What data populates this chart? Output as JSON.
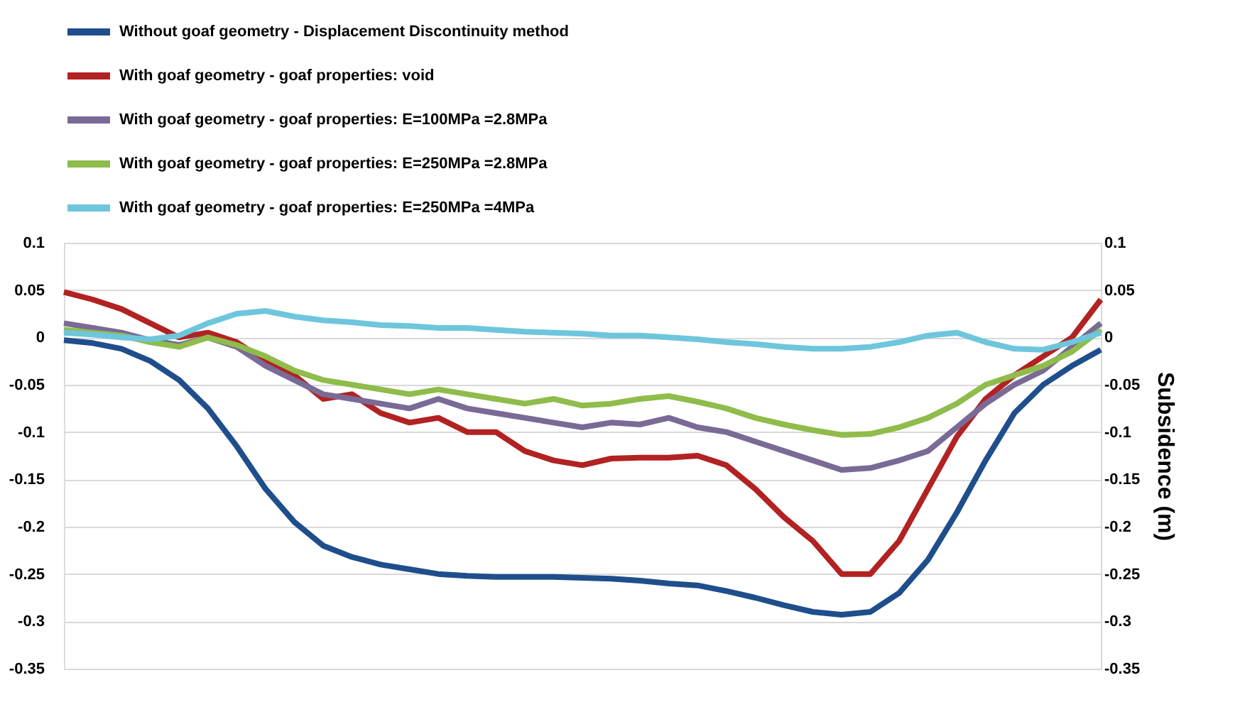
{
  "chart_data": {
    "type": "line",
    "categories": [
      null,
      null,
      null,
      null,
      null,
      null,
      null,
      null,
      null,
      null,
      null,
      null,
      null,
      null,
      null,
      null,
      null,
      null,
      null,
      null,
      null,
      null,
      null,
      null,
      null,
      null,
      null,
      null,
      null,
      null,
      null,
      null,
      null,
      null,
      null,
      null,
      null
    ],
    "series": [
      {
        "name": "Without goaf geometry - Displacement Discontinuity method",
        "color": "#1f4e8c",
        "values": [
          -0.003,
          -0.006,
          -0.012,
          -0.025,
          -0.045,
          -0.075,
          -0.115,
          -0.16,
          -0.195,
          -0.22,
          -0.232,
          -0.24,
          -0.245,
          -0.25,
          -0.252,
          -0.253,
          -0.253,
          -0.253,
          -0.254,
          -0.255,
          -0.257,
          -0.26,
          -0.262,
          -0.268,
          -0.275,
          -0.283,
          -0.29,
          -0.293,
          -0.29,
          -0.27,
          -0.235,
          -0.185,
          -0.13,
          -0.08,
          -0.05,
          -0.03,
          -0.013
        ]
      },
      {
        "name": "With goaf geometry - goaf properties: void",
        "color": "#b22222",
        "values": [
          0.048,
          0.04,
          0.03,
          0.015,
          0.0,
          0.005,
          -0.005,
          -0.025,
          -0.04,
          -0.065,
          -0.06,
          -0.08,
          -0.09,
          -0.085,
          -0.1,
          -0.1,
          -0.12,
          -0.13,
          -0.135,
          -0.128,
          -0.127,
          -0.127,
          -0.125,
          -0.135,
          -0.16,
          -0.19,
          -0.215,
          -0.25,
          -0.25,
          -0.215,
          -0.16,
          -0.105,
          -0.065,
          -0.04,
          -0.02,
          0.0,
          0.04
        ]
      },
      {
        "name": "With goaf geometry - goaf properties: E=100MPa =2.8MPa",
        "color": "#7a6a96",
        "values": [
          0.015,
          0.01,
          0.005,
          -0.003,
          -0.008,
          0.0,
          -0.01,
          -0.03,
          -0.045,
          -0.06,
          -0.065,
          -0.07,
          -0.075,
          -0.065,
          -0.075,
          -0.08,
          -0.085,
          -0.09,
          -0.095,
          -0.09,
          -0.092,
          -0.085,
          -0.095,
          -0.1,
          -0.11,
          -0.12,
          -0.13,
          -0.14,
          -0.138,
          -0.13,
          -0.12,
          -0.095,
          -0.07,
          -0.05,
          -0.035,
          -0.01,
          0.015
        ]
      },
      {
        "name": "With goaf geometry - goaf properties: E=250MPa =2.8MPa",
        "color": "#8fbc4b",
        "values": [
          0.008,
          0.005,
          0.002,
          -0.005,
          -0.01,
          0.0,
          -0.008,
          -0.02,
          -0.035,
          -0.045,
          -0.05,
          -0.055,
          -0.06,
          -0.055,
          -0.06,
          -0.065,
          -0.07,
          -0.065,
          -0.072,
          -0.07,
          -0.065,
          -0.062,
          -0.068,
          -0.075,
          -0.085,
          -0.092,
          -0.098,
          -0.103,
          -0.102,
          -0.095,
          -0.085,
          -0.07,
          -0.05,
          -0.04,
          -0.03,
          -0.015,
          0.008
        ]
      },
      {
        "name": "With goaf geometry - goaf properties: E=250MPa =4MPa",
        "color": "#6ec6dc",
        "values": [
          0.005,
          0.003,
          0.0,
          -0.002,
          0.002,
          0.015,
          0.025,
          0.028,
          0.022,
          0.018,
          0.016,
          0.013,
          0.012,
          0.01,
          0.01,
          0.008,
          0.006,
          0.005,
          0.004,
          0.002,
          0.002,
          0.0,
          -0.002,
          -0.005,
          -0.007,
          -0.01,
          -0.012,
          -0.012,
          -0.01,
          -0.005,
          0.002,
          0.005,
          -0.005,
          -0.012,
          -0.013,
          -0.005,
          0.005
        ]
      }
    ],
    "ylim": [
      -0.35,
      0.1
    ],
    "yticks": [
      -0.35,
      -0.3,
      -0.25,
      -0.2,
      -0.15,
      -0.1,
      -0.05,
      0,
      0.05,
      0.1
    ],
    "y2lim": [
      -0.35,
      0.1
    ],
    "y2ticks": [
      -0.35,
      -0.3,
      -0.25,
      -0.2,
      -0.15,
      -0.1,
      -0.05,
      0,
      0.05,
      0.1
    ],
    "y2label": "Subsidence (m)",
    "grid": "y",
    "legend": "top left",
    "line_style": "solid",
    "marker": "none"
  }
}
